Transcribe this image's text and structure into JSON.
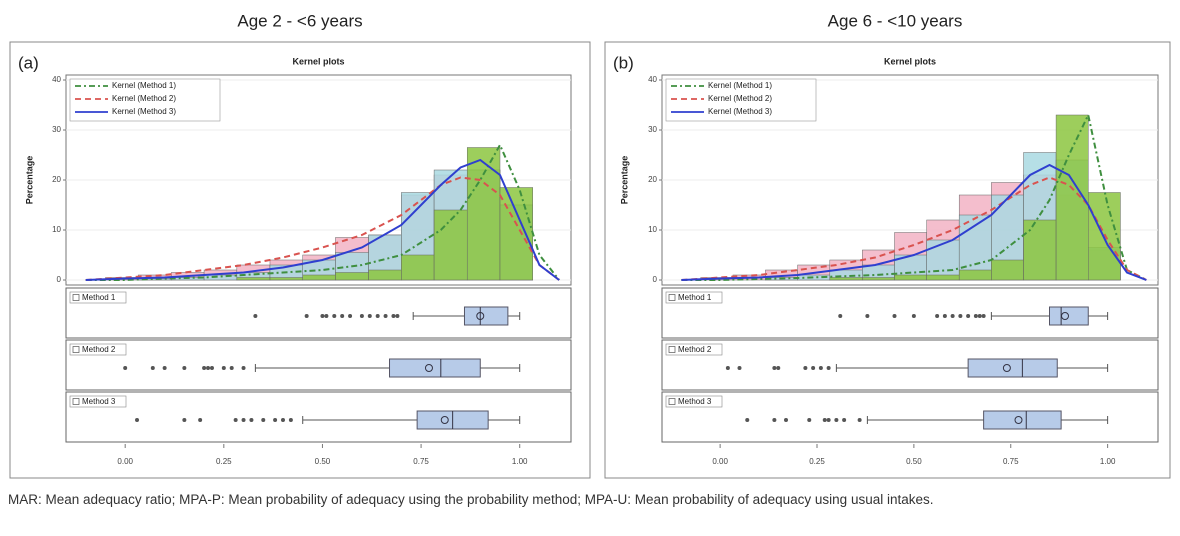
{
  "chart_data": [
    {
      "type": "histogram",
      "title": "Age 2 - <6 years",
      "panel_label": "(a)",
      "subtitle": "Kernel plots",
      "y_label": "Percentage",
      "xlim": [
        -0.15,
        1.13
      ],
      "xticks": [
        {
          "value": 0,
          "label": "0.00"
        },
        {
          "value": 0.25,
          "label": "0.25"
        },
        {
          "value": 0.5,
          "label": "0.50"
        },
        {
          "value": 0.75,
          "label": "0.75"
        },
        {
          "value": 1,
          "label": "1.00"
        }
      ],
      "ylim": [
        -1,
        41
      ],
      "yticks": [
        0,
        10,
        20,
        30,
        40
      ],
      "grid": true,
      "bins": [
        -0.05,
        0.033,
        0.117,
        0.2,
        0.283,
        0.367,
        0.45,
        0.533,
        0.617,
        0.7,
        0.783,
        0.867,
        0.95,
        1.033
      ],
      "series": [
        {
          "color": "#f2b3c4",
          "values": [
            0.5,
            1,
            1.5,
            2,
            3,
            4,
            5,
            8.5,
            9,
            17,
            21,
            22,
            15
          ]
        },
        {
          "color": "#a9d9e2",
          "values": [
            0,
            0.3,
            0.5,
            1,
            1.5,
            3,
            4,
            5.5,
            9,
            17.5,
            22,
            22,
            15
          ]
        },
        {
          "color": "#8cc63f",
          "values": [
            0,
            0,
            0,
            0,
            0.5,
            0.5,
            1,
            1.5,
            2,
            5,
            14,
            26.5,
            18.5
          ]
        }
      ],
      "kernels": {
        "x": [
          -0.1,
          0,
          0.1,
          0.2,
          0.3,
          0.4,
          0.5,
          0.6,
          0.7,
          0.8,
          0.85,
          0.9,
          0.95,
          1.0,
          1.05,
          1.1
        ],
        "series": [
          {
            "name": "Kernel (Method 1)",
            "color": "#3f8f3f",
            "dash": "6 3 2 3",
            "values": [
              0,
              0,
              0.3,
              0.5,
              1,
              1.5,
              2,
              3,
              5,
              10,
              14,
              20,
              27,
              18,
              5,
              0
            ]
          },
          {
            "name": "Kernel (Method 2)",
            "color": "#d9534f",
            "dash": "6 4",
            "values": [
              0,
              0.5,
              1,
              2,
              3,
              4.5,
              6.5,
              9,
              13,
              19,
              20.5,
              20,
              17,
              10,
              3,
              0
            ]
          },
          {
            "name": "Kernel (Method 3)",
            "color": "#2f3fcf",
            "dash": "none",
            "values": [
              0,
              0.3,
              0.5,
              1,
              1.5,
              2.5,
              4,
              6.5,
              11,
              19,
              22.5,
              24,
              21,
              12,
              3,
              0
            ]
          }
        ]
      },
      "boxes": [
        {
          "name": "Method 1",
          "whisker_low": 0.73,
          "q1": 0.86,
          "median": 0.9,
          "q3": 0.97,
          "whisker_high": 1.0,
          "mean": 0.9,
          "outliers": [
            0.33,
            0.46,
            0.5,
            0.51,
            0.53,
            0.55,
            0.57,
            0.6,
            0.62,
            0.64,
            0.66,
            0.68,
            0.69
          ]
        },
        {
          "name": "Method 2",
          "whisker_low": 0.33,
          "q1": 0.67,
          "median": 0.8,
          "q3": 0.9,
          "whisker_high": 1.0,
          "mean": 0.77,
          "outliers": [
            0,
            0.07,
            0.1,
            0.15,
            0.2,
            0.21,
            0.22,
            0.25,
            0.27,
            0.3
          ]
        },
        {
          "name": "Method 3",
          "whisker_low": 0.45,
          "q1": 0.74,
          "median": 0.83,
          "q3": 0.92,
          "whisker_high": 1.0,
          "mean": 0.81,
          "outliers": [
            0.03,
            0.15,
            0.19,
            0.28,
            0.3,
            0.32,
            0.35,
            0.38,
            0.4,
            0.42
          ]
        }
      ]
    },
    {
      "type": "histogram",
      "title": "Age 6 - <10 years",
      "panel_label": "(b)",
      "subtitle": "Kernel plots",
      "y_label": "Percentage",
      "xlim": [
        -0.15,
        1.13
      ],
      "xticks": [
        {
          "value": 0,
          "label": "0.00"
        },
        {
          "value": 0.25,
          "label": "0.25"
        },
        {
          "value": 0.5,
          "label": "0.50"
        },
        {
          "value": 0.75,
          "label": "0.75"
        },
        {
          "value": 1,
          "label": "1.00"
        }
      ],
      "ylim": [
        -1,
        41
      ],
      "yticks": [
        0,
        10,
        20,
        30,
        40
      ],
      "grid": true,
      "bins": [
        -0.05,
        0.033,
        0.117,
        0.2,
        0.283,
        0.367,
        0.45,
        0.533,
        0.617,
        0.7,
        0.783,
        0.867,
        0.95,
        1.033
      ],
      "series": [
        {
          "color": "#f2b3c4",
          "values": [
            0.5,
            1,
            2,
            3,
            4,
            6,
            9.5,
            12,
            17,
            19.5,
            21,
            17,
            6
          ]
        },
        {
          "color": "#a9d9e2",
          "values": [
            0,
            0,
            0.5,
            1,
            2,
            3,
            5,
            8,
            13,
            17,
            25.5,
            24,
            6.5
          ]
        },
        {
          "color": "#8cc63f",
          "values": [
            0,
            0,
            0,
            0,
            0.5,
            0.5,
            1,
            1,
            2,
            4,
            12,
            33,
            17.5
          ]
        }
      ],
      "kernels": {
        "x": [
          -0.1,
          0,
          0.1,
          0.2,
          0.3,
          0.4,
          0.5,
          0.6,
          0.7,
          0.8,
          0.85,
          0.9,
          0.95,
          1.0,
          1.05,
          1.1
        ],
        "series": [
          {
            "name": "Kernel (Method 1)",
            "color": "#3f8f3f",
            "dash": "6 3 2 3",
            "values": [
              0,
              0,
              0.2,
              0.4,
              0.7,
              1,
              1.5,
              2,
              4,
              10,
              16,
              25,
              33,
              15,
              2,
              0
            ]
          },
          {
            "name": "Kernel (Method 2)",
            "color": "#d9534f",
            "dash": "6 4",
            "values": [
              0,
              0.5,
              1,
              2,
              3,
              4.5,
              7,
              10,
              14,
              19,
              20.5,
              19,
              15,
              8,
              2,
              0
            ]
          },
          {
            "name": "Kernel (Method 3)",
            "color": "#2f3fcf",
            "dash": "none",
            "values": [
              0,
              0.3,
              0.5,
              1,
              2,
              3,
              5,
              8,
              13,
              21,
              23,
              21,
              15,
              7,
              1.5,
              0
            ]
          }
        ]
      },
      "boxes": [
        {
          "name": "Method 1",
          "whisker_low": 0.7,
          "q1": 0.85,
          "median": 0.88,
          "q3": 0.95,
          "whisker_high": 1.0,
          "mean": 0.89,
          "outliers": [
            0.31,
            0.38,
            0.45,
            0.5,
            0.56,
            0.58,
            0.6,
            0.62,
            0.64,
            0.66,
            0.67,
            0.68
          ]
        },
        {
          "name": "Method 2",
          "whisker_low": 0.3,
          "q1": 0.64,
          "median": 0.78,
          "q3": 0.87,
          "whisker_high": 1.0,
          "mean": 0.74,
          "outliers": [
            0.02,
            0.05,
            0.14,
            0.15,
            0.22,
            0.24,
            0.26,
            0.28
          ]
        },
        {
          "name": "Method 3",
          "whisker_low": 0.38,
          "q1": 0.68,
          "median": 0.79,
          "q3": 0.88,
          "whisker_high": 1.0,
          "mean": 0.77,
          "outliers": [
            0.07,
            0.14,
            0.17,
            0.23,
            0.27,
            0.28,
            0.3,
            0.32,
            0.36
          ]
        }
      ]
    }
  ],
  "footnote": "MAR: Mean adequacy ratio; MPA-P: Mean probability of adequacy using the probability method; MPA-U: Mean probability of adequacy using usual intakes."
}
